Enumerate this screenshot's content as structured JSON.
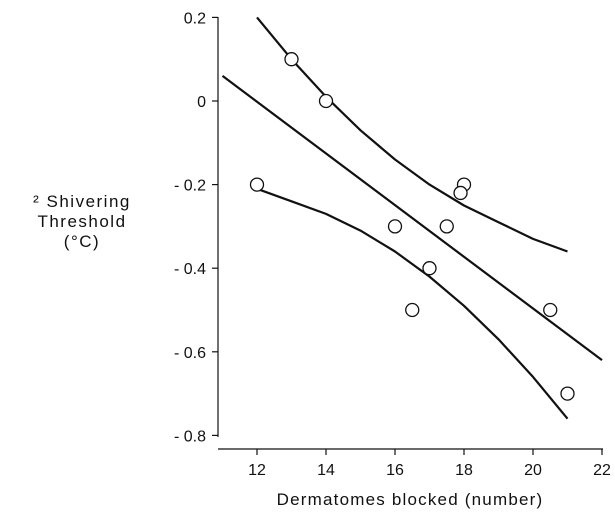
{
  "chart_data": {
    "type": "scatter",
    "title": "",
    "xlabel": "Dermatomes blocked (number)",
    "ylabel_lines": [
      "² Shivering",
      "Threshold",
      "(°C)"
    ],
    "xlim": [
      11,
      22
    ],
    "ylim": [
      -0.8,
      0.2
    ],
    "xticks": [
      12,
      14,
      16,
      18,
      20,
      22
    ],
    "yticks": [
      0.2,
      0,
      -0.2,
      -0.4,
      -0.6,
      -0.8
    ],
    "ytick_labels": [
      "0.2",
      "0",
      "- 0.2",
      "- 0.4",
      "- 0.6",
      "- 0.8"
    ],
    "grid": false,
    "points": [
      {
        "x": 12,
        "y": -0.2
      },
      {
        "x": 13,
        "y": 0.1
      },
      {
        "x": 14,
        "y": 0.0
      },
      {
        "x": 16,
        "y": -0.3
      },
      {
        "x": 16.5,
        "y": -0.5
      },
      {
        "x": 17,
        "y": -0.4
      },
      {
        "x": 17.5,
        "y": -0.3
      },
      {
        "x": 18,
        "y": -0.2
      },
      {
        "x": 17.9,
        "y": -0.22
      },
      {
        "x": 20.5,
        "y": -0.5
      },
      {
        "x": 21,
        "y": -0.7
      }
    ],
    "regression_line": {
      "x": [
        11,
        22
      ],
      "y": [
        0.06,
        -0.62
      ]
    },
    "upper_band": {
      "x": [
        12,
        13,
        14,
        15,
        16,
        17,
        18,
        19,
        20,
        21
      ],
      "y": [
        0.2,
        0.1,
        0.01,
        -0.07,
        -0.14,
        -0.2,
        -0.25,
        -0.29,
        -0.33,
        -0.36
      ]
    },
    "lower_band": {
      "x": [
        12,
        13,
        14,
        15,
        16,
        17,
        18,
        19,
        20,
        21
      ],
      "y": [
        -0.21,
        -0.24,
        -0.27,
        -0.31,
        -0.36,
        -0.42,
        -0.49,
        -0.57,
        -0.66,
        -0.76
      ]
    }
  }
}
